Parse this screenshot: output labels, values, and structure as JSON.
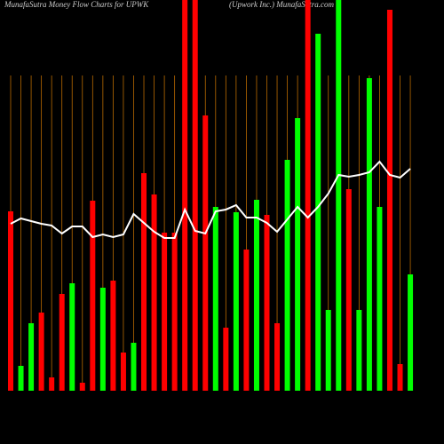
{
  "chart_data": {
    "type": "bar-line",
    "title": "MunafaSutra  Money Flow  Charts for UPWK",
    "subtitle": "(Upwork Inc.) MunafaSutra.com",
    "categories": [
      null,
      null,
      null,
      null,
      null,
      null,
      null,
      null,
      null,
      null,
      null,
      null,
      null,
      null,
      null,
      null,
      null,
      null,
      null,
      null,
      null,
      null,
      null,
      null,
      null,
      null,
      null,
      null,
      null,
      null,
      null,
      null,
      null,
      null,
      null,
      null,
      null,
      null,
      null,
      null
    ],
    "bars": {
      "values": [
        202,
        28,
        76,
        88,
        15,
        109,
        121,
        9,
        214,
        116,
        124,
        43,
        54,
        245,
        221,
        178,
        178,
        440,
        440,
        310,
        207,
        71,
        201,
        159,
        215,
        198,
        76,
        260,
        307,
        440,
        402,
        91,
        440,
        227,
        91,
        352,
        207,
        429,
        30,
        131
      ],
      "colors": [
        "#ff0000",
        "#00ff00",
        "#00ff00",
        "#ff0000",
        "#ff0000",
        "#ff0000",
        "#00ff00",
        "#ff0000",
        "#ff0000",
        "#00ff00",
        "#ff0000",
        "#ff0000",
        "#00ff00",
        "#ff0000",
        "#ff0000",
        "#ff0000",
        "#ff0000",
        "#ff0000",
        "#ff0000",
        "#ff0000",
        "#00ff00",
        "#ff0000",
        "#00ff00",
        "#ff0000",
        "#00ff00",
        "#ff0000",
        "#ff0000",
        "#00ff00",
        "#00ff00",
        "#ff0000",
        "#00ff00",
        "#00ff00",
        "#00ff00",
        "#ff0000",
        "#00ff00",
        "#00ff00",
        "#00ff00",
        "#ff0000",
        "#ff0000",
        "#00ff00"
      ]
    },
    "line": {
      "color": "#ffffff",
      "values": [
        188,
        194,
        191,
        188,
        186,
        177,
        185,
        185,
        173,
        176,
        173,
        176,
        199,
        189,
        179,
        172,
        172,
        204,
        180,
        177,
        202,
        204,
        209,
        195,
        195,
        189,
        179,
        193,
        207,
        195,
        207,
        222,
        243,
        241,
        243,
        246,
        258,
        243,
        240,
        250
      ]
    },
    "ylim": [
      0,
      440
    ],
    "grid_color": "#b86a00"
  }
}
